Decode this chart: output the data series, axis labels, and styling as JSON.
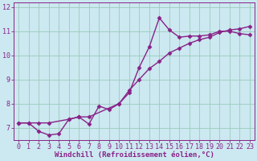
{
  "xlabel": "Windchill (Refroidissement éolien,°C)",
  "bg_color": "#cce8f0",
  "line_color": "#882288",
  "grid_color": "#99ccbb",
  "spine_color": "#882288",
  "xlim": [
    -0.5,
    23.5
  ],
  "ylim": [
    6.5,
    12.2
  ],
  "xticks": [
    0,
    1,
    2,
    3,
    4,
    5,
    6,
    7,
    8,
    9,
    10,
    11,
    12,
    13,
    14,
    15,
    16,
    17,
    18,
    19,
    20,
    21,
    22,
    23
  ],
  "yticks": [
    7,
    8,
    9,
    10,
    11,
    12
  ],
  "series1_x": [
    0,
    1,
    2,
    3,
    4,
    5,
    6,
    7,
    8,
    9,
    10,
    11,
    12,
    13,
    14,
    15,
    16,
    17,
    18,
    19,
    20,
    21,
    22,
    23
  ],
  "series1_y": [
    7.2,
    7.2,
    6.85,
    6.7,
    6.75,
    7.35,
    7.45,
    7.15,
    7.9,
    7.75,
    8.0,
    8.45,
    9.5,
    10.35,
    11.55,
    11.05,
    10.75,
    10.8,
    10.8,
    10.85,
    11.0,
    11.0,
    10.9,
    10.85
  ],
  "series2_x": [
    0,
    1,
    2,
    3,
    5,
    6,
    7,
    10,
    11,
    12,
    13,
    14,
    15,
    16,
    17,
    18,
    19,
    20,
    21,
    22,
    23
  ],
  "series2_y": [
    7.2,
    7.2,
    7.2,
    7.2,
    7.35,
    7.45,
    7.45,
    8.0,
    8.55,
    9.0,
    9.45,
    9.75,
    10.1,
    10.3,
    10.5,
    10.65,
    10.75,
    10.95,
    11.05,
    11.1,
    11.2
  ],
  "marker": "D",
  "markersize": 2.5,
  "linewidth": 1.0,
  "xlabel_fontsize": 6.5,
  "tick_fontsize": 6.0
}
